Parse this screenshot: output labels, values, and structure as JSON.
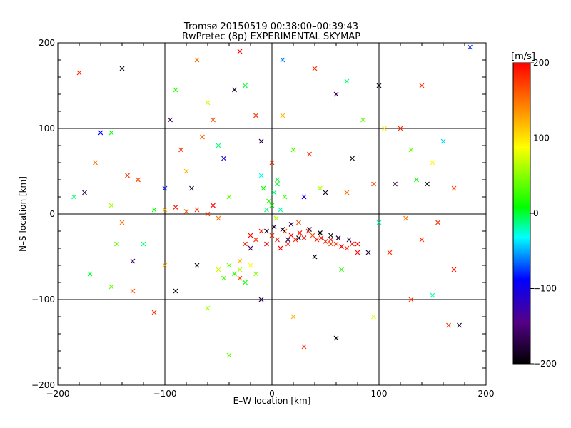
{
  "chart_data": {
    "type": "scatter",
    "title": "Tromsø 20150519 00:38:00–00:39:43",
    "subtitle": "RwPretec (8p) EXPERIMENTAL SKYMAP",
    "xlabel": "E–W location [km]",
    "ylabel": "N–S location [km]",
    "xlim": [
      -200,
      200
    ],
    "ylim": [
      -200,
      200
    ],
    "xticks": [
      "−200",
      "−100",
      "0",
      "100",
      "200"
    ],
    "yticks": [
      "−200",
      "−100",
      "0",
      "100",
      "200"
    ],
    "grid": true,
    "grid_values": [
      -100,
      0,
      100
    ],
    "marker": "x",
    "colorbar": {
      "label": "[m/s]",
      "range": [
        -200,
        200
      ],
      "ticks": [
        "−200",
        "−100",
        "0",
        "100",
        "200"
      ],
      "colormap": "rainbow",
      "stops": [
        "#000000",
        "#550088",
        "#0000ff",
        "#00ffff",
        "#00ff00",
        "#ffff00",
        "#ff7f00",
        "#ff0000"
      ]
    },
    "series": [
      {
        "points": [
          [
            -180,
            165,
            180
          ],
          [
            -175,
            25,
            -170
          ],
          [
            -165,
            60,
            150
          ],
          [
            -160,
            95,
            -90
          ],
          [
            -150,
            95,
            10
          ],
          [
            -150,
            10,
            60
          ],
          [
            -145,
            -35,
            40
          ],
          [
            -140,
            -10,
            150
          ],
          [
            -135,
            45,
            180
          ],
          [
            -130,
            -55,
            -150
          ],
          [
            -125,
            40,
            170
          ],
          [
            -120,
            -35,
            -10
          ],
          [
            -110,
            5,
            10
          ],
          [
            -100,
            30,
            -80
          ],
          [
            -95,
            110,
            -170
          ],
          [
            -90,
            145,
            20
          ],
          [
            -85,
            75,
            180
          ],
          [
            -80,
            50,
            120
          ],
          [
            -75,
            30,
            -180
          ],
          [
            -70,
            -60,
            -190
          ],
          [
            -65,
            90,
            160
          ],
          [
            -60,
            130,
            70
          ],
          [
            -55,
            110,
            170
          ],
          [
            -50,
            80,
            -10
          ],
          [
            -45,
            65,
            -100
          ],
          [
            -40,
            20,
            40
          ],
          [
            -35,
            145,
            -180
          ],
          [
            -30,
            -55,
            120
          ],
          [
            -25,
            150,
            0
          ],
          [
            -20,
            -40,
            -160
          ],
          [
            -15,
            115,
            180
          ],
          [
            -10,
            85,
            -170
          ],
          [
            -5,
            5,
            -10
          ],
          [
            0,
            60,
            180
          ],
          [
            5,
            35,
            0
          ],
          [
            10,
            115,
            120
          ],
          [
            15,
            -30,
            -170
          ],
          [
            20,
            75,
            30
          ],
          [
            25,
            -10,
            170
          ],
          [
            30,
            20,
            -100
          ],
          [
            35,
            70,
            180
          ],
          [
            40,
            -50,
            -190
          ],
          [
            45,
            30,
            60
          ],
          [
            50,
            25,
            -180
          ],
          [
            55,
            -35,
            180
          ],
          [
            60,
            140,
            -160
          ],
          [
            65,
            -65,
            20
          ],
          [
            70,
            25,
            150
          ],
          [
            75,
            65,
            -190
          ],
          [
            80,
            -35,
            200
          ],
          [
            85,
            110,
            40
          ],
          [
            90,
            -45,
            -180
          ],
          [
            95,
            35,
            170
          ],
          [
            100,
            -10,
            -20
          ],
          [
            105,
            100,
            100
          ],
          [
            110,
            -45,
            180
          ],
          [
            115,
            35,
            -170
          ],
          [
            120,
            100,
            180
          ],
          [
            125,
            -5,
            150
          ],
          [
            130,
            75,
            40
          ],
          [
            135,
            40,
            10
          ],
          [
            140,
            -30,
            180
          ],
          [
            145,
            35,
            -200
          ],
          [
            150,
            60,
            90
          ],
          [
            155,
            -10,
            180
          ],
          [
            160,
            85,
            -40
          ],
          [
            165,
            -130,
            180
          ],
          [
            170,
            30,
            170
          ],
          [
            175,
            -130,
            -190
          ],
          [
            185,
            195,
            -80
          ],
          [
            -185,
            20,
            -10
          ],
          [
            -140,
            170,
            -190
          ],
          [
            -110,
            -115,
            180
          ],
          [
            -60,
            -110,
            60
          ],
          [
            -40,
            -165,
            40
          ],
          [
            -10,
            -100,
            -170
          ],
          [
            20,
            -120,
            120
          ],
          [
            30,
            -155,
            180
          ],
          [
            60,
            -145,
            -190
          ],
          [
            95,
            -120,
            80
          ],
          [
            130,
            -100,
            180
          ],
          [
            150,
            -95,
            -20
          ],
          [
            170,
            -65,
            190
          ],
          [
            -170,
            -70,
            0
          ],
          [
            -150,
            -85,
            40
          ],
          [
            -130,
            -90,
            160
          ],
          [
            -100,
            -60,
            120
          ],
          [
            -90,
            -90,
            -190
          ],
          [
            -70,
            180,
            150
          ],
          [
            -30,
            190,
            200
          ],
          [
            10,
            180,
            -60
          ],
          [
            40,
            170,
            180
          ],
          [
            70,
            155,
            -10
          ],
          [
            100,
            150,
            -190
          ],
          [
            140,
            150,
            180
          ],
          [
            -30,
            -75,
            170
          ],
          [
            -25,
            -35,
            190
          ],
          [
            -20,
            -25,
            200
          ],
          [
            -15,
            -30,
            180
          ],
          [
            -10,
            -20,
            190
          ],
          [
            -5,
            -35,
            200
          ],
          [
            0,
            -25,
            180
          ],
          [
            5,
            -30,
            190
          ],
          [
            8,
            -40,
            200
          ],
          [
            12,
            -20,
            170
          ],
          [
            15,
            -35,
            190
          ],
          [
            18,
            -25,
            200
          ],
          [
            22,
            -30,
            180
          ],
          [
            26,
            -22,
            190
          ],
          [
            30,
            -28,
            200
          ],
          [
            34,
            -20,
            180
          ],
          [
            38,
            -25,
            170
          ],
          [
            42,
            -30,
            190
          ],
          [
            46,
            -28,
            200
          ],
          [
            50,
            -32,
            180
          ],
          [
            55,
            -30,
            190
          ],
          [
            60,
            -35,
            170
          ],
          [
            65,
            -38,
            200
          ],
          [
            70,
            -40,
            180
          ],
          [
            75,
            -35,
            190
          ],
          [
            80,
            -45,
            200
          ],
          [
            -5,
            -20,
            -190
          ],
          [
            2,
            -15,
            -180
          ],
          [
            10,
            -18,
            -200
          ],
          [
            18,
            -12,
            -170
          ],
          [
            25,
            -28,
            -190
          ],
          [
            35,
            -18,
            -180
          ],
          [
            45,
            -22,
            -200
          ],
          [
            55,
            -25,
            -190
          ],
          [
            62,
            -28,
            -180
          ],
          [
            72,
            -30,
            -170
          ],
          [
            -40,
            -60,
            40
          ],
          [
            -35,
            -70,
            20
          ],
          [
            -30,
            -65,
            60
          ],
          [
            -25,
            -80,
            10
          ],
          [
            -20,
            -60,
            90
          ],
          [
            -45,
            -75,
            30
          ],
          [
            -50,
            -65,
            70
          ],
          [
            -15,
            -70,
            50
          ],
          [
            0,
            10,
            10
          ],
          [
            2,
            25,
            -10
          ],
          [
            5,
            40,
            0
          ],
          [
            -3,
            15,
            20
          ],
          [
            8,
            5,
            -20
          ],
          [
            -8,
            30,
            10
          ],
          [
            12,
            20,
            30
          ],
          [
            -10,
            45,
            -30
          ],
          [
            4,
            -5,
            60
          ],
          [
            -60,
            0,
            170
          ],
          [
            -70,
            5,
            180
          ],
          [
            -80,
            3,
            160
          ],
          [
            -90,
            8,
            190
          ],
          [
            -50,
            -5,
            150
          ],
          [
            -100,
            5,
            120
          ],
          [
            -55,
            10,
            200
          ]
        ]
      }
    ]
  }
}
